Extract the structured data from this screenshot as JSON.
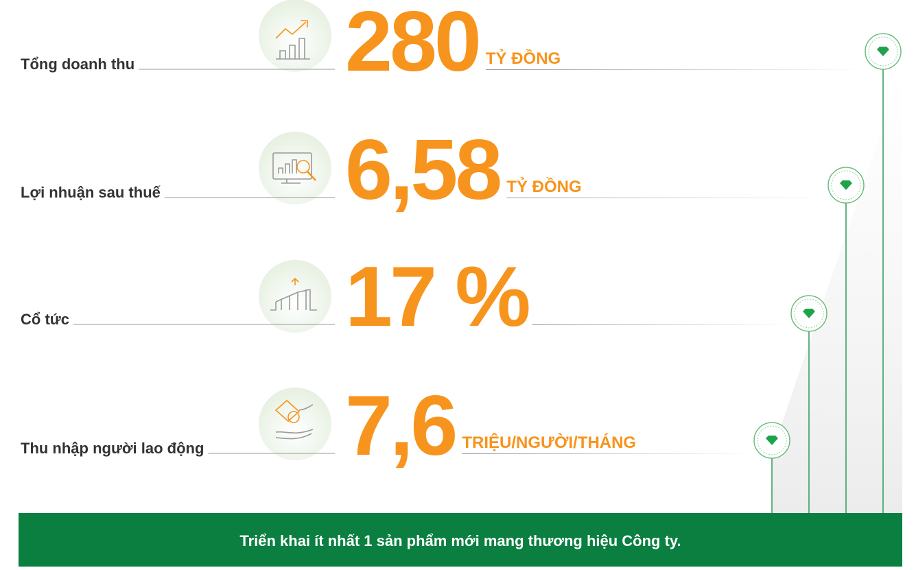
{
  "items": [
    {
      "label": "Tổng doanh thu",
      "value": "280",
      "unit": "TỶ ĐỒNG"
    },
    {
      "label": "Lợi nhuận sau thuế",
      "value": "6,58",
      "unit": "TỶ ĐỒNG"
    },
    {
      "label": "Cổ tức",
      "value": "17 %"
    },
    {
      "label": "Thu nhập người lao động",
      "value": "7,6",
      "unit": "TRIỆU/NGƯỜI/THÁNG"
    }
  ],
  "footer": "Triển khai ít nhất 1 sản phẩm mới mang thương hiệu Công ty."
}
